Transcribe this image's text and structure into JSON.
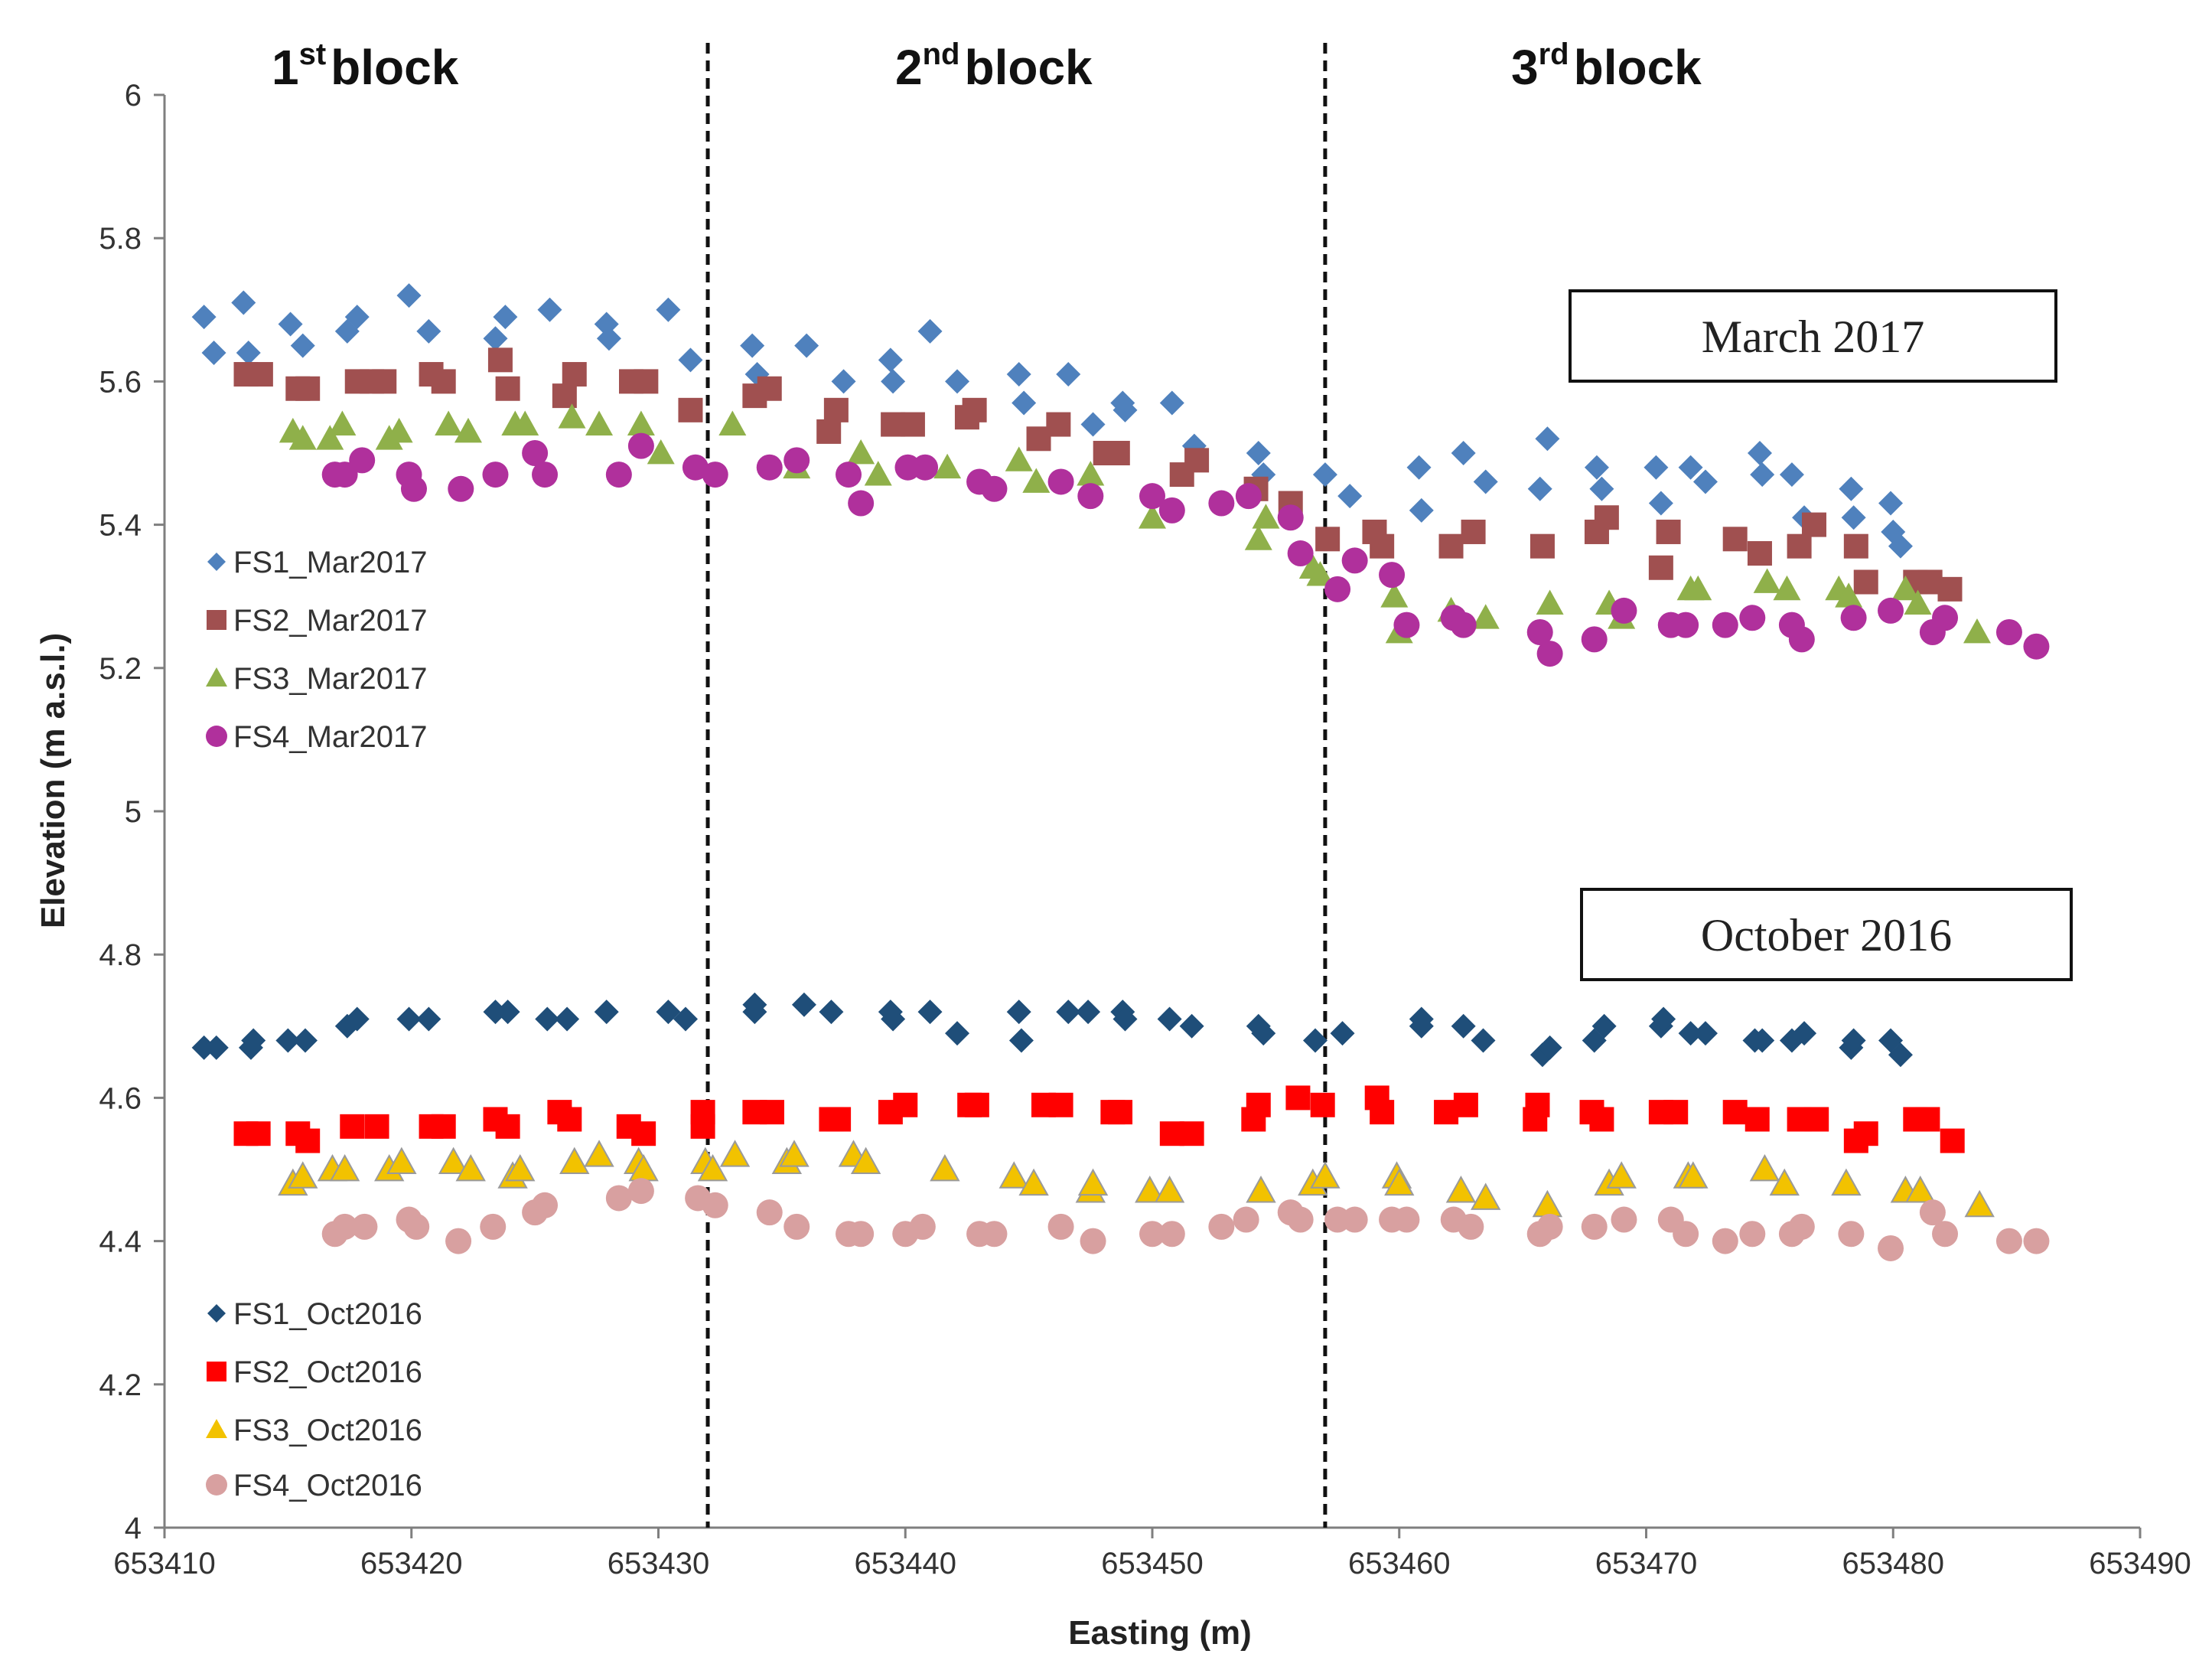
{
  "chart_data": {
    "type": "scatter",
    "xlabel": "Easting (m)",
    "ylabel": "Elevation (m  a.s.l.)",
    "xlim": [
      653410,
      653490
    ],
    "ylim": [
      4,
      6
    ],
    "xticks": [
      653410,
      653420,
      653430,
      653440,
      653450,
      653460,
      653470,
      653480,
      653490
    ],
    "yticks": [
      4,
      4.2,
      4.4,
      4.6,
      4.8,
      5,
      5.2,
      5.4,
      5.6,
      5.8,
      6
    ],
    "ytick_labels": [
      "4",
      "4.2",
      "4.4",
      "4.6",
      "4.8",
      "5",
      "5.2",
      "5.4",
      "5.6",
      "5.8",
      "6"
    ],
    "grid": false,
    "block_boundaries": [
      653432,
      653457
    ],
    "blocks": [
      {
        "num": "1",
        "sup": "st",
        "word": "block"
      },
      {
        "num": "2",
        "sup": "nd",
        "word": "block"
      },
      {
        "num": "3",
        "sup": "rd",
        "word": "block"
      }
    ],
    "annotations": [
      "March 2017",
      "October 2016"
    ],
    "series": [
      {
        "name": "FS1_Mar2017",
        "marker": "diamond",
        "color": "#4F81BD",
        "x": [
          653411.6,
          653412,
          653413.2,
          653413.4,
          653415.1,
          653415.6,
          653417.4,
          653417.8,
          653419.9,
          653420.7,
          653423.4,
          653423.8,
          653425.6,
          653427.9,
          653428.0,
          653430.4,
          653431.3,
          653433.8,
          653434.0,
          653436.0,
          653437.5,
          653439.4,
          653439.5,
          653441.0,
          653442.1,
          653444.6,
          653444.8,
          653446.6,
          653447.6,
          653448.8,
          653448.9,
          653450.8,
          653451.7,
          653454.3,
          653454.5,
          653457.0,
          653458.0,
          653460.8,
          653460.9,
          653462.6,
          653463.5,
          653465.7,
          653466.0,
          653468.0,
          653468.2,
          653470.4,
          653470.6,
          653471.8,
          653472.4,
          653474.6,
          653474.7,
          653475.9,
          653476.4,
          653478.3,
          653478.4,
          653479.9,
          653480.0,
          653480.3
        ],
        "y": [
          5.69,
          5.64,
          5.71,
          5.64,
          5.68,
          5.65,
          5.67,
          5.69,
          5.72,
          5.67,
          5.66,
          5.69,
          5.7,
          5.68,
          5.66,
          5.7,
          5.63,
          5.65,
          5.61,
          5.65,
          5.6,
          5.63,
          5.6,
          5.67,
          5.6,
          5.61,
          5.57,
          5.61,
          5.54,
          5.57,
          5.56,
          5.57,
          5.51,
          5.5,
          5.47,
          5.47,
          5.44,
          5.48,
          5.42,
          5.5,
          5.46,
          5.45,
          5.52,
          5.48,
          5.45,
          5.48,
          5.43,
          5.48,
          5.46,
          5.5,
          5.47,
          5.47,
          5.41,
          5.45,
          5.41,
          5.43,
          5.39,
          5.37
        ]
      },
      {
        "name": "FS2_Mar2017",
        "marker": "square",
        "color": "#A05050",
        "x": [
          653413.3,
          653413.9,
          653415.4,
          653415.8,
          653417.8,
          653418.4,
          653418.9,
          653420.8,
          653421.3,
          653423.6,
          653423.9,
          653426.2,
          653426.6,
          653428.9,
          653429.5,
          653431.3,
          653433.9,
          653434.5,
          653436.9,
          653437.2,
          653439.5,
          653440.3,
          653442.5,
          653442.8,
          653445.4,
          653446.2,
          653448.1,
          653448.6,
          653451.2,
          653451.8,
          653454.2,
          653455.6,
          653457.1,
          653459.0,
          653459.3,
          653462.1,
          653463.0,
          653465.8,
          653468.0,
          653468.4,
          653470.6,
          653470.9,
          653473.6,
          653474.6,
          653476.2,
          653476.8,
          653478.5,
          653478.9,
          653480.9,
          653481.5,
          653482.3
        ],
        "y": [
          5.61,
          5.61,
          5.59,
          5.59,
          5.6,
          5.6,
          5.6,
          5.61,
          5.6,
          5.63,
          5.59,
          5.58,
          5.61,
          5.6,
          5.6,
          5.56,
          5.58,
          5.59,
          5.53,
          5.56,
          5.54,
          5.54,
          5.55,
          5.56,
          5.52,
          5.54,
          5.5,
          5.5,
          5.47,
          5.49,
          5.45,
          5.43,
          5.38,
          5.39,
          5.37,
          5.37,
          5.39,
          5.37,
          5.39,
          5.41,
          5.34,
          5.39,
          5.38,
          5.36,
          5.37,
          5.4,
          5.37,
          5.32,
          5.32,
          5.32,
          5.31
        ]
      },
      {
        "name": "FS3_Mar2017",
        "marker": "triangle",
        "color": "#8FB04A",
        "x": [
          653415.2,
          653415.6,
          653416.7,
          653417.2,
          653419.1,
          653419.5,
          653421.5,
          653422.3,
          653424.2,
          653424.6,
          653426.5,
          653427.6,
          653429.3,
          653430.1,
          653433.0,
          653435.6,
          653438.2,
          653438.9,
          653441.7,
          653444.6,
          653445.3,
          653447.5,
          653450.0,
          653454.3,
          653454.6,
          653456.5,
          653456.8,
          653459.8,
          653460.0,
          653462.1,
          653463.5,
          653466.1,
          653468.5,
          653469.0,
          653471.8,
          653472.1,
          653474.9,
          653475.7,
          653477.8,
          653478.2,
          653480.5,
          653481.0,
          653483.4
        ],
        "y": [
          5.53,
          5.52,
          5.52,
          5.54,
          5.52,
          5.53,
          5.54,
          5.53,
          5.54,
          5.54,
          5.55,
          5.54,
          5.54,
          5.5,
          5.54,
          5.48,
          5.5,
          5.47,
          5.48,
          5.49,
          5.46,
          5.47,
          5.41,
          5.38,
          5.41,
          5.34,
          5.33,
          5.3,
          5.25,
          5.28,
          5.27,
          5.29,
          5.29,
          5.27,
          5.31,
          5.31,
          5.32,
          5.31,
          5.31,
          5.3,
          5.31,
          5.29,
          5.25
        ]
      },
      {
        "name": "FS4_Mar2017",
        "marker": "circle",
        "color": "#B0309C",
        "x": [
          653416.9,
          653417.3,
          653418.0,
          653419.9,
          653420.1,
          653422.0,
          653423.4,
          653425.0,
          653425.4,
          653428.4,
          653429.3,
          653431.5,
          653432.3,
          653434.5,
          653435.6,
          653437.7,
          653438.2,
          653440.1,
          653440.8,
          653443.0,
          653443.6,
          653446.3,
          653447.5,
          653450.0,
          653450.8,
          653452.8,
          653453.9,
          653455.6,
          653456.0,
          653457.5,
          653458.2,
          653459.7,
          653460.3,
          653462.2,
          653462.6,
          653465.7,
          653466.1,
          653467.9,
          653469.1,
          653471.0,
          653471.6,
          653473.2,
          653474.3,
          653475.9,
          653476.3,
          653478.4,
          653479.9,
          653481.6,
          653482.1,
          653484.7,
          653485.8
        ],
        "y": [
          5.47,
          5.47,
          5.49,
          5.47,
          5.45,
          5.45,
          5.47,
          5.5,
          5.47,
          5.47,
          5.51,
          5.48,
          5.47,
          5.48,
          5.49,
          5.47,
          5.43,
          5.48,
          5.48,
          5.46,
          5.45,
          5.46,
          5.44,
          5.44,
          5.42,
          5.43,
          5.44,
          5.41,
          5.36,
          5.31,
          5.35,
          5.33,
          5.26,
          5.27,
          5.26,
          5.25,
          5.22,
          5.24,
          5.28,
          5.26,
          5.26,
          5.26,
          5.27,
          5.26,
          5.24,
          5.27,
          5.28,
          5.25,
          5.27,
          5.25,
          5.23
        ]
      },
      {
        "name": "FS1_Oct2016",
        "marker": "diamond",
        "color": "#1F4E79",
        "x": [
          653411.6,
          653412.1,
          653413.5,
          653413.6,
          653415.0,
          653415.7,
          653417.4,
          653417.8,
          653419.9,
          653420.7,
          653423.4,
          653423.9,
          653425.5,
          653426.3,
          653427.9,
          653430.4,
          653431.1,
          653433.9,
          653433.9,
          653435.9,
          653437.0,
          653439.4,
          653439.5,
          653441.0,
          653442.1,
          653444.6,
          653444.7,
          653446.6,
          653447.4,
          653448.8,
          653448.9,
          653450.7,
          653451.6,
          653454.3,
          653454.5,
          653456.6,
          653457.7,
          653460.9,
          653460.9,
          653462.6,
          653463.4,
          653465.8,
          653466.1,
          653467.9,
          653468.3,
          653470.6,
          653470.7,
          653471.8,
          653472.4,
          653474.4,
          653474.7,
          653475.9,
          653476.4,
          653478.3,
          653478.4,
          653479.9,
          653480.3
        ],
        "y": [
          4.67,
          4.67,
          4.67,
          4.68,
          4.68,
          4.68,
          4.7,
          4.71,
          4.71,
          4.71,
          4.72,
          4.72,
          4.71,
          4.71,
          4.72,
          4.72,
          4.71,
          4.72,
          4.73,
          4.73,
          4.72,
          4.72,
          4.71,
          4.72,
          4.69,
          4.72,
          4.68,
          4.72,
          4.72,
          4.72,
          4.71,
          4.71,
          4.7,
          4.7,
          4.69,
          4.68,
          4.69,
          4.7,
          4.71,
          4.7,
          4.68,
          4.66,
          4.67,
          4.68,
          4.7,
          4.7,
          4.71,
          4.69,
          4.69,
          4.68,
          4.68,
          4.68,
          4.69,
          4.67,
          4.68,
          4.68,
          4.66
        ]
      },
      {
        "name": "FS2_Oct2016",
        "marker": "square",
        "color": "#FF0000",
        "x": [
          653413.3,
          653413.8,
          653415.4,
          653415.8,
          653417.6,
          653418.6,
          653420.8,
          653421.3,
          653423.4,
          653423.9,
          653426.0,
          653426.4,
          653428.8,
          653429.4,
          653431.8,
          653431.8,
          653433.9,
          653434.6,
          653437.0,
          653437.3,
          653439.4,
          653440.0,
          653442.6,
          653442.9,
          653445.6,
          653446.3,
          653448.4,
          653448.7,
          653450.8,
          653451.6,
          653454.1,
          653454.3,
          653455.9,
          653456.9,
          653459.1,
          653459.3,
          653461.9,
          653462.7,
          653465.5,
          653465.6,
          653467.8,
          653468.2,
          653470.6,
          653471.2,
          653473.6,
          653474.5,
          653476.2,
          653476.9,
          653478.5,
          653478.9,
          653480.9,
          653481.4,
          653482.4
        ],
        "y": [
          4.55,
          4.55,
          4.55,
          4.54,
          4.56,
          4.56,
          4.56,
          4.56,
          4.57,
          4.56,
          4.58,
          4.57,
          4.56,
          4.55,
          4.58,
          4.56,
          4.58,
          4.58,
          4.57,
          4.57,
          4.58,
          4.59,
          4.59,
          4.59,
          4.59,
          4.59,
          4.58,
          4.58,
          4.55,
          4.55,
          4.57,
          4.59,
          4.6,
          4.59,
          4.6,
          4.58,
          4.58,
          4.59,
          4.57,
          4.59,
          4.58,
          4.57,
          4.58,
          4.58,
          4.58,
          4.57,
          4.57,
          4.57,
          4.54,
          4.55,
          4.57,
          4.57,
          4.54
        ]
      },
      {
        "name": "FS3_Oct2016",
        "marker": "triangle",
        "color": "#F2C200",
        "x": [
          653415.2,
          653415.6,
          653416.8,
          653417.3,
          653419.1,
          653419.6,
          653421.7,
          653422.4,
          653424.1,
          653424.4,
          653426.6,
          653427.6,
          653429.2,
          653429.4,
          653431.9,
          653432.2,
          653433.1,
          653435.2,
          653435.5,
          653437.9,
          653438.4,
          653441.6,
          653444.4,
          653445.2,
          653447.5,
          653447.6,
          653449.9,
          653450.7,
          653454.4,
          653456.5,
          653457.0,
          653459.9,
          653460.0,
          653462.5,
          653463.5,
          653466.0,
          653468.5,
          653469.0,
          653471.7,
          653471.9,
          653474.8,
          653475.6,
          653478.1,
          653480.5,
          653481.1,
          653483.5
        ],
        "y": [
          4.48,
          4.49,
          4.5,
          4.5,
          4.5,
          4.51,
          4.51,
          4.5,
          4.49,
          4.5,
          4.51,
          4.52,
          4.51,
          4.5,
          4.51,
          4.5,
          4.52,
          4.51,
          4.52,
          4.52,
          4.51,
          4.5,
          4.49,
          4.48,
          4.47,
          4.48,
          4.47,
          4.47,
          4.47,
          4.48,
          4.49,
          4.49,
          4.48,
          4.47,
          4.46,
          4.45,
          4.48,
          4.49,
          4.49,
          4.49,
          4.5,
          4.48,
          4.48,
          4.47,
          4.47,
          4.45
        ]
      },
      {
        "name": "FS4_Oct2016",
        "marker": "circle",
        "color": "#D8A0A0",
        "x": [
          653416.9,
          653417.3,
          653418.1,
          653419.9,
          653420.2,
          653421.9,
          653423.3,
          653425.0,
          653425.4,
          653428.4,
          653429.3,
          653431.6,
          653432.3,
          653434.5,
          653435.6,
          653437.7,
          653438.2,
          653440.0,
          653440.7,
          653443.0,
          653443.6,
          653446.3,
          653447.6,
          653450.0,
          653450.8,
          653452.8,
          653453.8,
          653455.6,
          653456.0,
          653457.5,
          653458.2,
          653459.7,
          653460.3,
          653462.2,
          653462.9,
          653465.7,
          653466.1,
          653467.9,
          653469.1,
          653471.0,
          653471.6,
          653473.2,
          653474.3,
          653475.9,
          653476.3,
          653478.3,
          653479.9,
          653481.6,
          653482.1,
          653484.7,
          653485.8
        ],
        "y": [
          4.41,
          4.42,
          4.42,
          4.43,
          4.42,
          4.4,
          4.42,
          4.44,
          4.45,
          4.46,
          4.47,
          4.46,
          4.45,
          4.44,
          4.42,
          4.41,
          4.41,
          4.41,
          4.42,
          4.41,
          4.41,
          4.42,
          4.4,
          4.41,
          4.41,
          4.42,
          4.43,
          4.44,
          4.43,
          4.43,
          4.43,
          4.43,
          4.43,
          4.43,
          4.42,
          4.41,
          4.42,
          4.42,
          4.43,
          4.43,
          4.41,
          4.4,
          4.41,
          4.41,
          4.42,
          4.41,
          4.39,
          4.44,
          4.41,
          4.4,
          4.4
        ]
      }
    ]
  }
}
